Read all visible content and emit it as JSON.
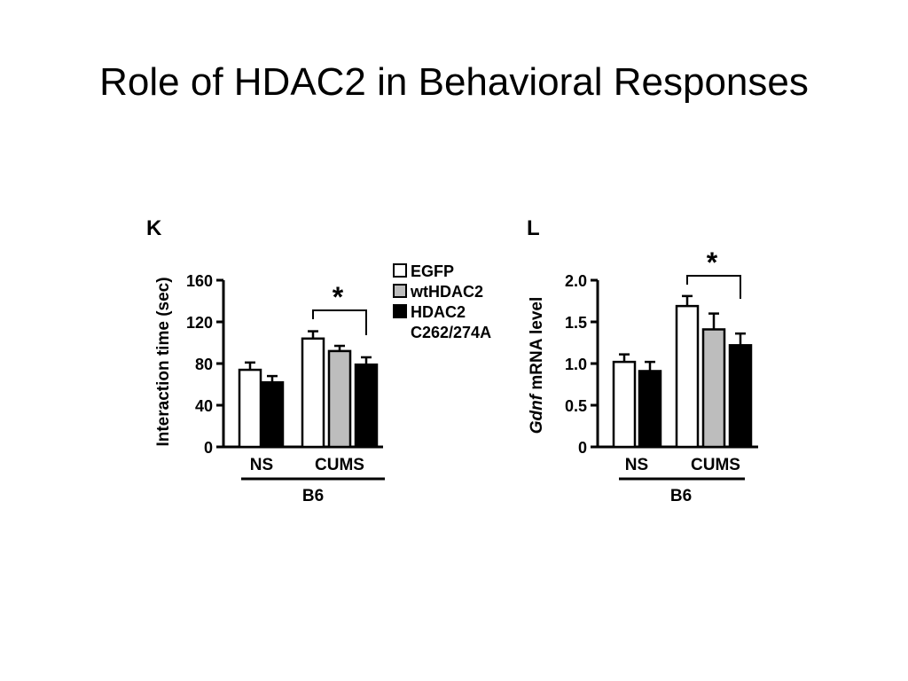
{
  "slide": {
    "title": "Role of HDAC2 in Behavioral Responses"
  },
  "legend": [
    {
      "label": "EGFP",
      "color": "#ffffff"
    },
    {
      "label": "wtHDAC2",
      "color": "#bdbdbd"
    },
    {
      "label": "HDAC2",
      "color": "#000000"
    },
    {
      "label": "C262/274A",
      "color": ""
    }
  ],
  "chart_data": [
    {
      "type": "bar",
      "panel": "K",
      "ylabel": "Interaction time (sec)",
      "ylim": [
        0,
        160
      ],
      "yticks": [
        0,
        40,
        80,
        120,
        160
      ],
      "group_label": "B6",
      "categories": [
        "NS",
        "CUMS"
      ],
      "series": [
        {
          "name": "EGFP",
          "color": "#ffffff",
          "values": [
            74,
            104
          ],
          "errors": [
            7,
            7
          ]
        },
        {
          "name": "wtHDAC2",
          "color": "#bdbdbd",
          "values": [
            null,
            92
          ],
          "errors": [
            null,
            5
          ]
        },
        {
          "name": "HDAC2 C262/274A",
          "color": "#000000",
          "values": [
            62,
            79
          ],
          "errors": [
            6,
            7
          ]
        }
      ],
      "significance": {
        "text": "*",
        "between": [
          "EGFP",
          "HDAC2 C262/274A"
        ],
        "category": "CUMS"
      }
    },
    {
      "type": "bar",
      "panel": "L",
      "ylabel_italic": "Gdnf",
      "ylabel": "mRNA level",
      "ylim": [
        0,
        2.0
      ],
      "yticks": [
        "0",
        "0.5",
        "1.0",
        "1.5",
        "2.0"
      ],
      "group_label": "B6",
      "categories": [
        "NS",
        "CUMS"
      ],
      "series": [
        {
          "name": "EGFP",
          "color": "#ffffff",
          "values": [
            1.02,
            1.69
          ],
          "errors": [
            0.09,
            0.12
          ]
        },
        {
          "name": "wtHDAC2",
          "color": "#bdbdbd",
          "values": [
            null,
            1.41
          ],
          "errors": [
            null,
            0.19
          ]
        },
        {
          "name": "HDAC2 C262/274A",
          "color": "#000000",
          "values": [
            0.91,
            1.22
          ],
          "errors": [
            0.11,
            0.14
          ]
        }
      ],
      "significance": {
        "text": "*",
        "between": [
          "EGFP",
          "HDAC2 C262/274A"
        ],
        "category": "CUMS"
      }
    }
  ]
}
